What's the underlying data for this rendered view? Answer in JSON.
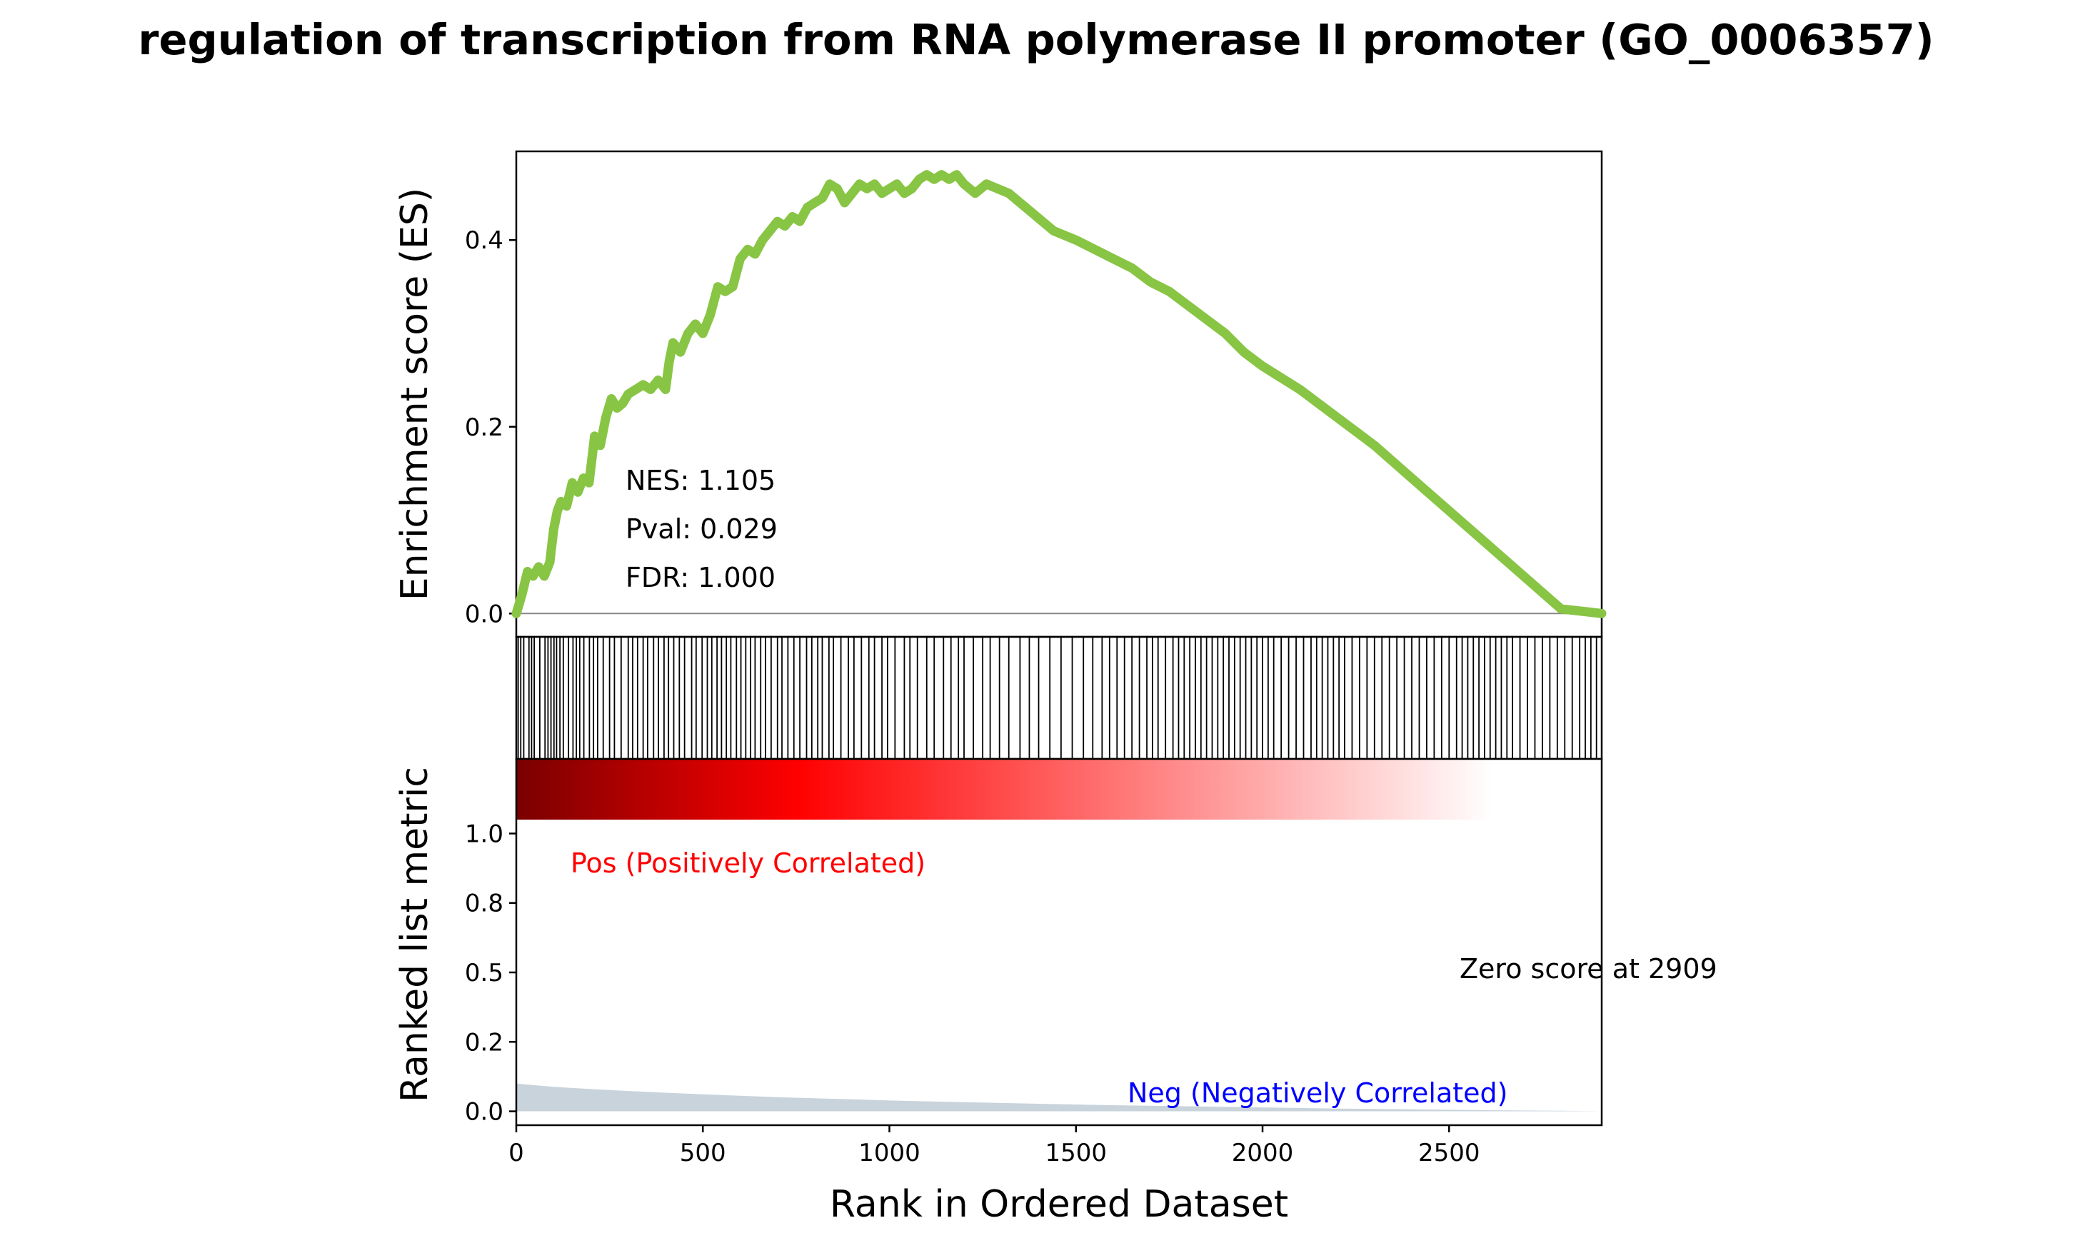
{
  "chart_data": {
    "type": "line",
    "title": "regulation of transcription from RNA polymerase II promoter (GO_0006357)",
    "xlabel": "Rank in Ordered Dataset",
    "es_ylabel": "Enrichment score (ES)",
    "rank_ylabel": "Ranked list metric",
    "xlim": [
      0,
      2909
    ],
    "x_ticks": [
      0,
      500,
      1000,
      1500,
      2000,
      2500
    ],
    "es_ylim": [
      -0.025,
      0.495
    ],
    "es_ticks": [
      {
        "value": 0.0,
        "label": "0.0"
      },
      {
        "value": 0.2,
        "label": "0.2"
      },
      {
        "value": 0.4,
        "label": "0.4"
      }
    ],
    "rank_ylim": [
      -0.05,
      1.05
    ],
    "rank_ticks": [
      {
        "value": 0.0,
        "label": "0.0"
      },
      {
        "value": 0.25,
        "label": "0.2"
      },
      {
        "value": 0.5,
        "label": "0.5"
      },
      {
        "value": 0.75,
        "label": "0.8"
      },
      {
        "value": 1.0,
        "label": "1.0"
      }
    ],
    "stats": {
      "nes": "NES: 1.105",
      "pval": "Pval: 0.029",
      "fdr": "FDR: 1.000"
    },
    "pos_label": "Pos (Positively Correlated)",
    "neg_label": "Neg (Negatively Correlated)",
    "zero_score_label": "Zero score at 2909",
    "es_curve": {
      "x": [
        0,
        15,
        30,
        45,
        60,
        75,
        90,
        100,
        110,
        120,
        135,
        150,
        165,
        180,
        195,
        210,
        225,
        240,
        255,
        270,
        285,
        300,
        320,
        340,
        360,
        380,
        400,
        410,
        420,
        440,
        460,
        480,
        500,
        520,
        540,
        560,
        580,
        600,
        620,
        640,
        660,
        680,
        700,
        720,
        740,
        760,
        780,
        800,
        820,
        840,
        860,
        880,
        900,
        920,
        940,
        960,
        980,
        1000,
        1020,
        1040,
        1060,
        1080,
        1100,
        1120,
        1140,
        1160,
        1180,
        1200,
        1230,
        1260,
        1290,
        1320,
        1350,
        1380,
        1410,
        1440,
        1470,
        1500,
        1550,
        1600,
        1650,
        1700,
        1750,
        1800,
        1850,
        1900,
        1950,
        2000,
        2100,
        2200,
        2300,
        2400,
        2500,
        2600,
        2700,
        2800,
        2909
      ],
      "y": [
        0.0,
        0.02,
        0.045,
        0.04,
        0.05,
        0.04,
        0.055,
        0.09,
        0.11,
        0.12,
        0.115,
        0.14,
        0.13,
        0.145,
        0.14,
        0.19,
        0.18,
        0.21,
        0.23,
        0.22,
        0.225,
        0.235,
        0.24,
        0.245,
        0.24,
        0.25,
        0.24,
        0.27,
        0.29,
        0.28,
        0.3,
        0.31,
        0.3,
        0.32,
        0.35,
        0.345,
        0.35,
        0.38,
        0.39,
        0.385,
        0.4,
        0.41,
        0.42,
        0.415,
        0.425,
        0.42,
        0.435,
        0.44,
        0.445,
        0.46,
        0.455,
        0.44,
        0.45,
        0.46,
        0.455,
        0.46,
        0.45,
        0.455,
        0.46,
        0.45,
        0.455,
        0.465,
        0.47,
        0.465,
        0.47,
        0.465,
        0.47,
        0.46,
        0.45,
        0.46,
        0.455,
        0.45,
        0.44,
        0.43,
        0.42,
        0.41,
        0.405,
        0.4,
        0.39,
        0.38,
        0.37,
        0.355,
        0.345,
        0.33,
        0.315,
        0.3,
        0.28,
        0.265,
        0.24,
        0.21,
        0.18,
        0.145,
        0.11,
        0.075,
        0.04,
        0.005,
        0.0
      ]
    },
    "hit_ranks": [
      5,
      12,
      20,
      34,
      41,
      48,
      63,
      77,
      85,
      93,
      101,
      108,
      117,
      126,
      140,
      152,
      161,
      170,
      181,
      196,
      207,
      218,
      233,
      250,
      263,
      281,
      300,
      312,
      325,
      340,
      352,
      368,
      381,
      396,
      408,
      422,
      437,
      451,
      470,
      482,
      498,
      512,
      524,
      538,
      550,
      563,
      575,
      590,
      602,
      615,
      628,
      640,
      655,
      668,
      683,
      700,
      712,
      728,
      744,
      760,
      778,
      792,
      808,
      820,
      838,
      850,
      870,
      890,
      905,
      925,
      945,
      960,
      980,
      995,
      1015,
      1040,
      1055,
      1075,
      1100,
      1120,
      1145,
      1165,
      1185,
      1200,
      1225,
      1250,
      1270,
      1295,
      1320,
      1350,
      1375,
      1400,
      1430,
      1460,
      1490,
      1520,
      1545,
      1570,
      1590,
      1610,
      1630,
      1650,
      1670,
      1690,
      1705,
      1720,
      1740,
      1760,
      1775,
      1790,
      1805,
      1820,
      1835,
      1850,
      1865,
      1880,
      1895,
      1910,
      1925,
      1940,
      1955,
      1970,
      1985,
      2000,
      2015,
      2030,
      2050,
      2070,
      2090,
      2110,
      2130,
      2145,
      2160,
      2175,
      2190,
      2205,
      2220,
      2240,
      2260,
      2280,
      2300,
      2320,
      2340,
      2360,
      2380,
      2400,
      2420,
      2440,
      2460,
      2480,
      2500,
      2520,
      2535,
      2550,
      2565,
      2580,
      2595,
      2610,
      2625,
      2640,
      2655,
      2670,
      2690,
      2710,
      2730,
      2750,
      2770,
      2790,
      2810,
      2830,
      2850,
      2865,
      2880,
      2895
    ],
    "ranked_metric": {
      "x": [
        0,
        100,
        200,
        300,
        400,
        500,
        600,
        700,
        800,
        900,
        1000,
        1200,
        1400,
        1600,
        1800,
        2000,
        2200,
        2400,
        2600,
        2800,
        2909
      ],
      "y": [
        0.1,
        0.088,
        0.08,
        0.073,
        0.067,
        0.061,
        0.056,
        0.051,
        0.047,
        0.043,
        0.039,
        0.033,
        0.027,
        0.022,
        0.018,
        0.014,
        0.01,
        0.007,
        0.004,
        0.002,
        0.0
      ]
    },
    "colors": {
      "es_line": "#88c544",
      "hit_line": "#000000",
      "metric_fill": "#c9d3dc",
      "pos_text": "#ff0000",
      "neg_text": "#0000ff",
      "gradient": [
        "#7a0000",
        "#ff0000",
        "#ffffff"
      ]
    }
  }
}
